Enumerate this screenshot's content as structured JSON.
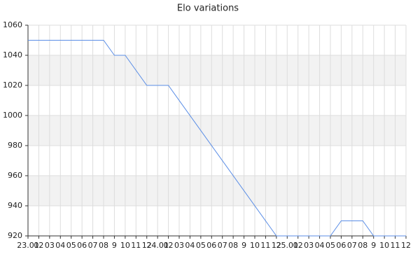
{
  "chart_data": {
    "type": "line",
    "title": "Elo variations",
    "x": [
      0,
      7,
      8,
      9,
      11,
      13,
      23,
      28,
      29,
      31,
      32,
      35
    ],
    "series": [
      {
        "name": "Elo",
        "color": "#5b8ee6",
        "values": [
          1050,
          1050,
          1040,
          1040,
          1020,
          1020,
          920,
          920,
          930,
          930,
          920,
          920
        ]
      }
    ],
    "xlim": [
      0,
      35
    ],
    "xticks": [
      {
        "value": 0,
        "label": "23.01"
      },
      {
        "value": 1,
        "label": "02"
      },
      {
        "value": 2,
        "label": "03"
      },
      {
        "value": 3,
        "label": "04"
      },
      {
        "value": 4,
        "label": "05"
      },
      {
        "value": 5,
        "label": "06"
      },
      {
        "value": 6,
        "label": "07"
      },
      {
        "value": 7,
        "label": "08"
      },
      {
        "value": 8,
        "label": "9"
      },
      {
        "value": 9,
        "label": "10"
      },
      {
        "value": 10,
        "label": "11"
      },
      {
        "value": 11,
        "label": "12"
      },
      {
        "value": 12,
        "label": "24.01"
      },
      {
        "value": 13,
        "label": "02"
      },
      {
        "value": 14,
        "label": "03"
      },
      {
        "value": 15,
        "label": "04"
      },
      {
        "value": 16,
        "label": "05"
      },
      {
        "value": 17,
        "label": "06"
      },
      {
        "value": 18,
        "label": "07"
      },
      {
        "value": 19,
        "label": "08"
      },
      {
        "value": 20,
        "label": "9"
      },
      {
        "value": 21,
        "label": "10"
      },
      {
        "value": 22,
        "label": "11"
      },
      {
        "value": 23,
        "label": "12"
      },
      {
        "value": 24,
        "label": "25.01"
      },
      {
        "value": 25,
        "label": "02"
      },
      {
        "value": 26,
        "label": "03"
      },
      {
        "value": 27,
        "label": "04"
      },
      {
        "value": 28,
        "label": "05"
      },
      {
        "value": 29,
        "label": "06"
      },
      {
        "value": 30,
        "label": "07"
      },
      {
        "value": 31,
        "label": "08"
      },
      {
        "value": 32,
        "label": "9"
      },
      {
        "value": 33,
        "label": "10"
      },
      {
        "value": 34,
        "label": "11"
      },
      {
        "value": 35,
        "label": "12"
      }
    ],
    "ylim": [
      920,
      1060
    ],
    "yticks": [
      920,
      940,
      960,
      980,
      1000,
      1020,
      1040,
      1060
    ],
    "grid": true,
    "band_color": "#f2f2f2"
  }
}
